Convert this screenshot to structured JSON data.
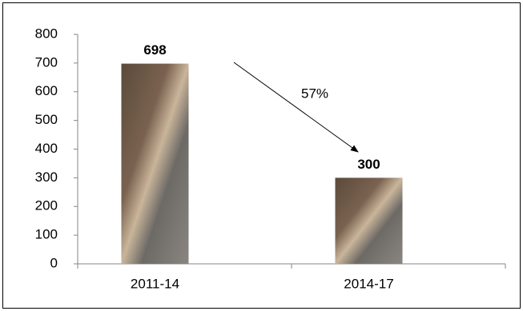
{
  "chart_data": {
    "type": "bar",
    "categories": [
      "2011-14",
      "2014-17"
    ],
    "values": [
      698,
      300
    ],
    "ylim": [
      0,
      800
    ],
    "yticks": [
      0,
      100,
      200,
      300,
      400,
      500,
      600,
      700,
      800
    ],
    "annotation": "57%"
  }
}
